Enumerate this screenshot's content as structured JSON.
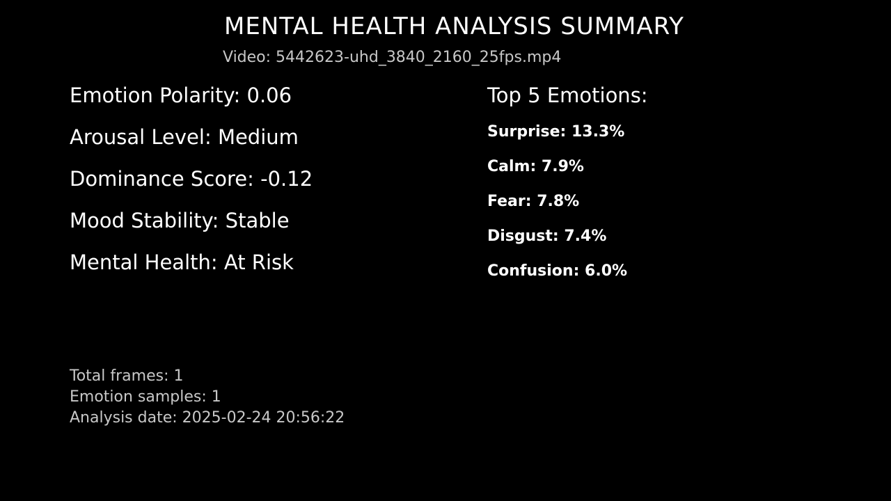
{
  "header": {
    "title": "MENTAL HEALTH ANALYSIS SUMMARY",
    "video": "Video: 5442623-uhd_3840_2160_25fps.mp4"
  },
  "metrics": [
    "Emotion Polarity: 0.06",
    "Arousal Level: Medium",
    "Dominance Score: -0.12",
    "Mood Stability: Stable",
    "Mental Health: At Risk"
  ],
  "top_emotions": {
    "heading": "Top 5 Emotions:",
    "items": [
      "Surprise: 13.3%",
      "Calm: 7.9%",
      "Fear: 7.8%",
      "Disgust: 7.4%",
      "Confusion: 6.0%"
    ]
  },
  "footer": {
    "total_frames": "Total frames: 1",
    "emotion_samples": "Emotion samples: 1",
    "analysis_date": "Analysis date: 2025-02-24 20:56:22"
  },
  "colors": {
    "background": "#000000",
    "primary_text": "#ffffff",
    "secondary_text": "#c8c8c8"
  }
}
